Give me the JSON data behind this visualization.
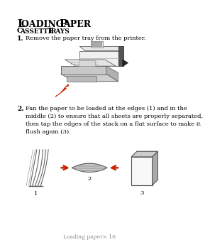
{
  "title_L": "L",
  "title_rest": "OADING ",
  "title_P": "P",
  "title_aper": "APER",
  "subtitle_C": "C",
  "subtitle_assette": "ASSETTE ",
  "subtitle_T": "T",
  "subtitle_rays": "RAYS",
  "step1_num": "1.",
  "step1_text": "Remove the paper tray from the printer.",
  "step2_num": "2.",
  "step2_text": "Fan the paper to be loaded at the edges (1) and in the\nmiddle (2) to ensure that all sheets are properly separated,\nthen tap the edges of the stack on a flat surface to make it\nflush again (3).",
  "num1": "1",
  "num2": "2",
  "num3": "3",
  "footer": "Loading paper> 16",
  "bg_color": "#ffffff",
  "text_color": "#000000",
  "red_color": "#cc2200",
  "gray_dark": "#444444",
  "gray_mid": "#888888",
  "gray_light": "#dddddd",
  "title_big_fs": 11,
  "title_small_fs": 9,
  "sub_big_fs": 7.5,
  "sub_small_fs": 6.5,
  "body_fs": 6.0,
  "step_num_fs": 6.5,
  "footer_fs": 5.5
}
